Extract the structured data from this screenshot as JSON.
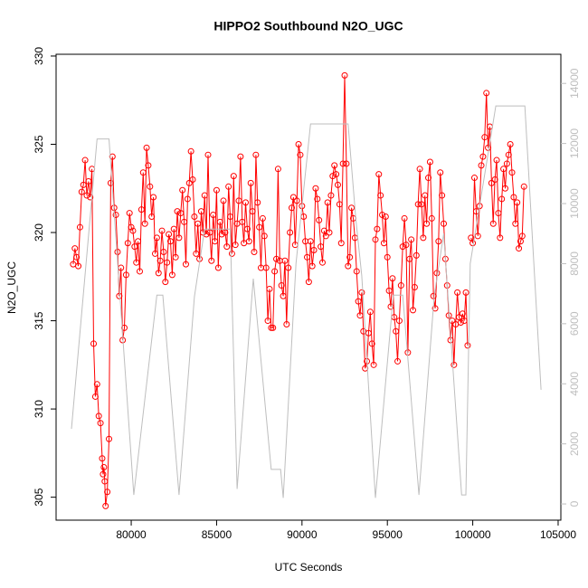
{
  "chart_data": {
    "type": "line",
    "title": "HIPPO2 Southbound N2O_UGC",
    "x_label": "UTC Seconds",
    "y_label": "N2O_UGC",
    "xlim": [
      75600,
      105160
    ],
    "ylim": [
      303.7,
      330.1
    ],
    "y2lim": [
      -540,
      14970
    ],
    "xticks": [
      80000,
      85000,
      90000,
      95000,
      100000,
      105000
    ],
    "yticks": [
      305,
      310,
      315,
      320,
      325,
      330
    ],
    "y2ticks": [
      0,
      2000,
      4000,
      6000,
      8000,
      10000,
      12000,
      14000
    ],
    "series": [
      {
        "color": "#ff0000",
        "marker": "circle",
        "x": [
          76600,
          76700,
          76800,
          76900,
          77000,
          77100,
          77200,
          77300,
          77400,
          77500,
          77600,
          77700,
          77800,
          77900,
          78000,
          78100,
          78200,
          78300,
          78350,
          78400,
          78450,
          78500,
          78600,
          78700,
          78800,
          78900,
          79000,
          79100,
          79200,
          79300,
          79400,
          79500,
          79600,
          79700,
          79800,
          79900,
          80000,
          80100,
          80200,
          80300,
          80400,
          80500,
          80600,
          80700,
          80800,
          80900,
          81000,
          81100,
          81200,
          81300,
          81400,
          81500,
          81600,
          81700,
          81800,
          81900,
          82000,
          82100,
          82200,
          82300,
          82400,
          82500,
          82600,
          82700,
          82800,
          82900,
          83000,
          83100,
          83200,
          83300,
          83400,
          83500,
          83600,
          83700,
          83800,
          83900,
          84000,
          84100,
          84200,
          84300,
          84400,
          84500,
          84600,
          84700,
          84800,
          84900,
          85000,
          85100,
          85200,
          85300,
          85400,
          85500,
          85600,
          85700,
          85800,
          85900,
          86000,
          86100,
          86200,
          86300,
          86400,
          86500,
          86600,
          86700,
          86800,
          86900,
          87000,
          87100,
          87200,
          87300,
          87400,
          87500,
          87600,
          87700,
          87800,
          87900,
          88000,
          88100,
          88200,
          88300,
          88400,
          88500,
          88600,
          88700,
          88800,
          88900,
          89000,
          89100,
          89200,
          89300,
          89400,
          89500,
          89600,
          89700,
          89800,
          89900,
          90000,
          90100,
          90200,
          90300,
          90400,
          90500,
          90600,
          90700,
          90800,
          90900,
          91000,
          91100,
          91200,
          91300,
          91400,
          91500,
          91600,
          91700,
          91800,
          91900,
          92000,
          92100,
          92200,
          92300,
          92400,
          92500,
          92600,
          92700,
          92800,
          92900,
          93000,
          93100,
          93200,
          93300,
          93400,
          93500,
          93600,
          93700,
          93800,
          93900,
          94000,
          94100,
          94200,
          94300,
          94400,
          94500,
          94600,
          94700,
          94800,
          94900,
          95000,
          95100,
          95200,
          95300,
          95400,
          95500,
          95600,
          95700,
          95800,
          95900,
          96000,
          96100,
          96200,
          96300,
          96400,
          96500,
          96600,
          96700,
          96800,
          96900,
          97000,
          97100,
          97200,
          97300,
          97400,
          97500,
          97600,
          97700,
          97800,
          97900,
          98000,
          98100,
          98200,
          98300,
          98400,
          98500,
          98600,
          98700,
          98800,
          98900,
          99000,
          99100,
          99200,
          99300,
          99400,
          99500,
          99600,
          99700,
          99800,
          99900,
          100000,
          100100,
          100200,
          100300,
          100400,
          100500,
          100600,
          100700,
          100800,
          100900,
          101000,
          101100,
          101200,
          101300,
          101400,
          101500,
          101600,
          101700,
          101800,
          101900,
          102000,
          102100,
          102200,
          102300,
          102400,
          102500,
          102600,
          102700,
          102800,
          102900,
          103000
        ],
        "values": [
          318.2,
          319.1,
          318.6,
          318.1,
          320.3,
          322.3,
          322.7,
          324.1,
          322.1,
          322.9,
          322.0,
          323.6,
          313.7,
          310.7,
          311.4,
          309.6,
          309.2,
          307.2,
          306.3,
          306.7,
          305.9,
          304.5,
          305.3,
          308.3,
          322.8,
          324.3,
          321.4,
          321.0,
          318.9,
          316.4,
          318.0,
          313.9,
          314.6,
          317.6,
          319.4,
          321.1,
          320.3,
          320.1,
          319.2,
          318.3,
          319.5,
          317.8,
          321.3,
          323.4,
          320.5,
          324.8,
          323.8,
          322.6,
          320.9,
          322.0,
          318.8,
          319.7,
          317.7,
          318.4,
          320.1,
          318.9,
          317.2,
          318.3,
          319.9,
          319.5,
          317.6,
          320.2,
          318.6,
          321.2,
          319.7,
          321.1,
          322.4,
          320.6,
          318.2,
          321.9,
          322.8,
          324.6,
          323.0,
          320.9,
          318.8,
          320.5,
          318.5,
          321.2,
          320.0,
          322.1,
          319.9,
          324.4,
          320.0,
          318.4,
          321.0,
          319.5,
          322.4,
          318.0,
          320.6,
          319.9,
          321.8,
          320.0,
          319.2,
          322.6,
          320.9,
          318.8,
          323.2,
          319.3,
          320.5,
          321.8,
          324.3,
          320.6,
          319.4,
          321.7,
          320.2,
          319.5,
          322.8,
          321.2,
          318.9,
          324.4,
          321.7,
          320.3,
          318.0,
          320.8,
          319.8,
          318.0,
          315.0,
          316.8,
          314.6,
          314.6,
          317.8,
          318.5,
          323.6,
          318.4,
          317.0,
          316.4,
          318.4,
          314.8,
          318.0,
          320.0,
          321.4,
          322.0,
          319.3,
          321.8,
          325.0,
          324.4,
          321.5,
          320.9,
          319.5,
          318.6,
          317.2,
          319.5,
          318.1,
          319.0,
          322.5,
          321.9,
          320.7,
          319.2,
          318.3,
          320.1,
          319.8,
          321.7,
          320.0,
          322.1,
          323.2,
          323.8,
          323.3,
          322.7,
          321.6,
          319.4,
          323.9,
          328.9,
          323.9,
          318.1,
          318.6,
          321.4,
          320.8,
          319.7,
          317.8,
          316.1,
          315.3,
          316.6,
          314.4,
          312.3,
          312.7,
          314.3,
          315.5,
          313.7,
          312.5,
          319.6,
          320.2,
          323.3,
          322.1,
          321.0,
          319.4,
          320.9,
          318.6,
          316.7,
          315.8,
          317.4,
          315.2,
          314.4,
          312.7,
          315.0,
          317.0,
          319.2,
          320.8,
          319.3,
          313.2,
          318.5,
          319.6,
          315.6,
          316.9,
          318.7,
          321.6,
          323.6,
          321.6,
          319.7,
          322.1,
          320.5,
          323.1,
          324.0,
          320.8,
          316.4,
          315.7,
          317.7,
          319.5,
          323.4,
          322.1,
          320.5,
          318.5,
          317.0,
          315.3,
          313.9,
          315.0,
          312.5,
          314.8,
          316.6,
          315.2,
          314.9,
          315.4,
          315.0,
          316.6,
          313.6,
          null,
          319.7,
          319.4,
          323.1,
          321.2,
          319.8,
          321.5,
          323.8,
          324.3,
          325.4,
          327.9,
          324.8,
          326.0,
          322.8,
          320.5,
          323.0,
          324.1,
          321.1,
          319.7,
          321.9,
          323.6,
          322.5,
          323.9,
          324.4,
          325.0,
          323.4,
          322.0,
          320.5,
          321.7,
          319.1,
          319.5,
          319.8,
          322.6
        ]
      },
      {
        "color": "#bebebe",
        "axis": "y2",
        "x": [
          76500,
          78000,
          78700,
          80150,
          81500,
          81850,
          82800,
          83700,
          84300,
          85800,
          86200,
          87150,
          88200,
          88750,
          88900,
          89650,
          90500,
          92700,
          93150,
          93500,
          94300,
          95350,
          95900,
          96850,
          97750,
          98300,
          99350,
          99600,
          99850,
          101350,
          103050,
          104000
        ],
        "values": [
          2500,
          12150,
          12150,
          300,
          6950,
          6950,
          300,
          6900,
          9150,
          9150,
          500,
          7500,
          1150,
          1150,
          200,
          8000,
          12650,
          12650,
          9500,
          7600,
          200,
          6950,
          6950,
          300,
          6950,
          9000,
          300,
          300,
          8000,
          13250,
          13250,
          3800
        ]
      }
    ]
  }
}
